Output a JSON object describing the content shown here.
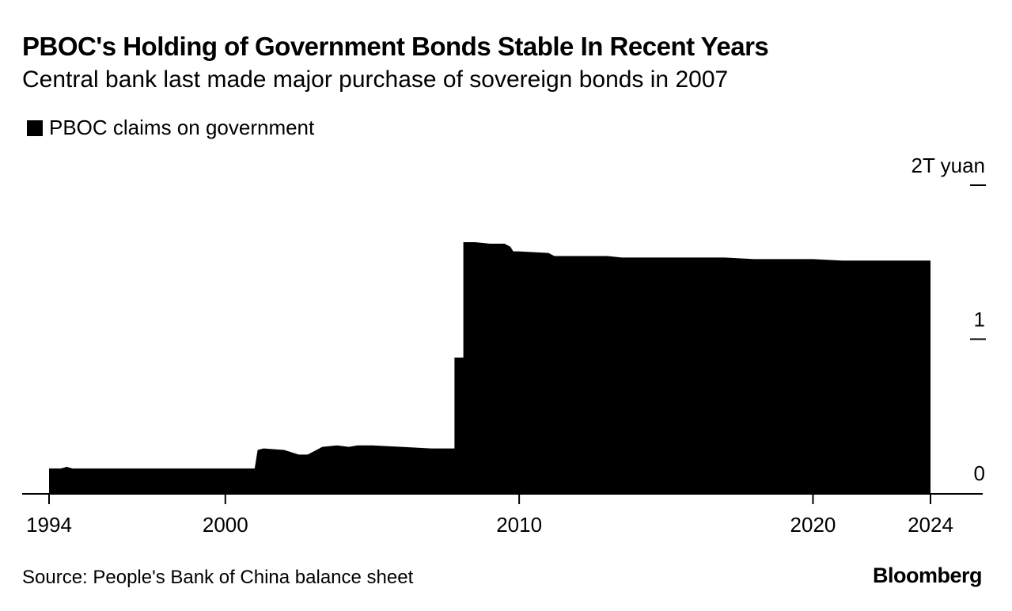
{
  "chart_data": {
    "type": "area",
    "title": "PBOC's Holding of Government Bonds Stable In Recent Years",
    "subtitle": "Central bank last made major purchase of sovereign bonds in 2007",
    "legend": [
      "PBOC claims on government"
    ],
    "legend_position": "top-left",
    "ylabel": "",
    "y_unit_label": "2T yuan",
    "ylim": [
      0,
      2
    ],
    "yticks": [
      {
        "value": 0,
        "label": "0"
      },
      {
        "value": 1,
        "label": "1"
      },
      {
        "value": 2,
        "label": "2T yuan"
      }
    ],
    "xlim": [
      1994,
      2024
    ],
    "xticks": [
      {
        "value": 1994,
        "label": "1994"
      },
      {
        "value": 2000,
        "label": "2000"
      },
      {
        "value": 2010,
        "label": "2010"
      },
      {
        "value": 2020,
        "label": "2020"
      },
      {
        "value": 2024,
        "label": "2024"
      }
    ],
    "grid": false,
    "series": [
      {
        "name": "PBOC claims on government",
        "color": "#000000",
        "x": [
          1994.0,
          1994.4,
          1994.6,
          1994.8,
          2001.0,
          2001.1,
          2001.3,
          2002.0,
          2002.5,
          2002.8,
          2003.0,
          2003.3,
          2003.8,
          2004.2,
          2004.5,
          2005.0,
          2006.0,
          2007.0,
          2007.8,
          2007.8,
          2008.1,
          2008.1,
          2008.4,
          2008.5,
          2009.0,
          2009.5,
          2009.7,
          2009.8,
          2010.0,
          2011.0,
          2011.2,
          2012.0,
          2013.0,
          2013.5,
          2015.0,
          2016.0,
          2017.0,
          2018.0,
          2019.0,
          2020.0,
          2021.0,
          2022.0,
          2023.0,
          2024.0
        ],
        "values": [
          0.16,
          0.16,
          0.17,
          0.16,
          0.16,
          0.28,
          0.29,
          0.28,
          0.25,
          0.25,
          0.27,
          0.3,
          0.31,
          0.3,
          0.31,
          0.31,
          0.3,
          0.29,
          0.29,
          0.88,
          0.88,
          1.63,
          1.63,
          1.63,
          1.62,
          1.62,
          1.6,
          1.57,
          1.57,
          1.56,
          1.54,
          1.54,
          1.54,
          1.53,
          1.53,
          1.53,
          1.53,
          1.52,
          1.52,
          1.52,
          1.51,
          1.51,
          1.51,
          1.51
        ]
      }
    ]
  },
  "source": "Source: People's Bank of China balance sheet",
  "brand": "Bloomberg"
}
